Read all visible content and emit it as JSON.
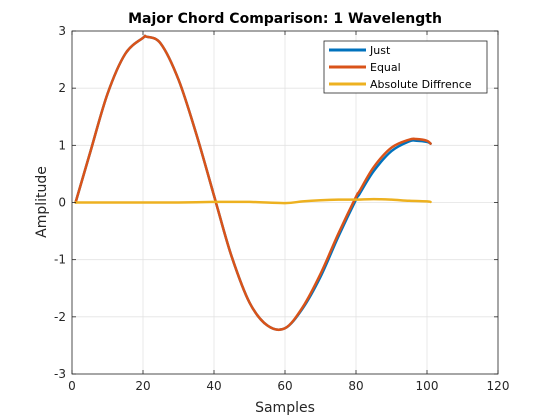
{
  "chart_data": {
    "type": "line",
    "title": "Major Chord Comparison: 1 Wavelength",
    "xlabel": "Samples",
    "ylabel": "Amplitude",
    "xlim": [
      0,
      120
    ],
    "ylim": [
      -3,
      3
    ],
    "xticks": [
      0,
      20,
      40,
      60,
      80,
      100,
      120
    ],
    "yticks": [
      -3,
      -2,
      -1,
      0,
      1,
      2,
      3
    ],
    "grid": true,
    "legend_position": "top-right",
    "series": [
      {
        "name": "Just",
        "color": "#0072BD",
        "x": [
          1,
          5,
          10,
          15,
          20,
          21,
          25,
          30,
          35,
          40,
          41,
          45,
          50,
          55,
          60,
          65,
          70,
          75,
          80,
          81,
          85,
          90,
          95,
          97,
          100,
          101
        ],
        "y": [
          0.0,
          0.85,
          1.9,
          2.6,
          2.88,
          2.9,
          2.78,
          2.15,
          1.2,
          0.12,
          -0.1,
          -0.95,
          -1.75,
          -2.15,
          -2.2,
          -1.85,
          -1.3,
          -0.6,
          0.05,
          0.15,
          0.55,
          0.9,
          1.07,
          1.08,
          1.06,
          1.03
        ]
      },
      {
        "name": "Equal",
        "color": "#D95319",
        "x": [
          1,
          5,
          10,
          15,
          20,
          21,
          25,
          30,
          35,
          40,
          41,
          45,
          50,
          55,
          60,
          65,
          70,
          75,
          80,
          81,
          85,
          90,
          95,
          97,
          100,
          101
        ],
        "y": [
          0.0,
          0.85,
          1.9,
          2.6,
          2.88,
          2.9,
          2.78,
          2.15,
          1.2,
          0.12,
          -0.1,
          -0.95,
          -1.75,
          -2.15,
          -2.2,
          -1.83,
          -1.25,
          -0.55,
          0.1,
          0.2,
          0.62,
          0.96,
          1.1,
          1.11,
          1.08,
          1.03
        ]
      },
      {
        "name": "Absolute Diffrence",
        "color": "#EDB120",
        "x": [
          1,
          10,
          20,
          30,
          40,
          50,
          60,
          65,
          70,
          75,
          80,
          85,
          90,
          95,
          100,
          101
        ],
        "y": [
          0.0,
          0.0,
          0.0,
          0.0,
          0.01,
          0.01,
          -0.01,
          0.02,
          0.04,
          0.05,
          0.05,
          0.06,
          0.05,
          0.03,
          0.02,
          0.01
        ]
      }
    ]
  }
}
